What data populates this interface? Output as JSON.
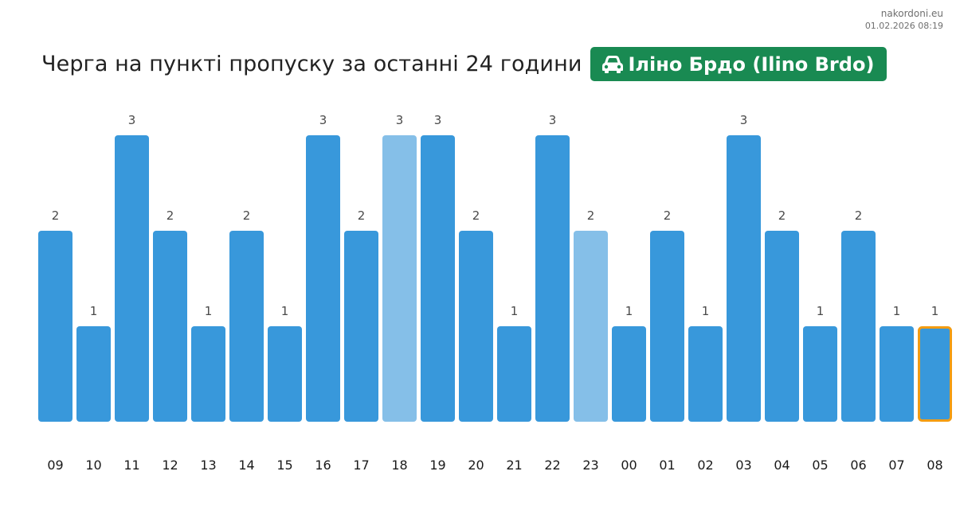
{
  "watermark": {
    "site": "nakordoni.eu",
    "timestamp": "01.02.2026 08:19"
  },
  "header": {
    "title": "Черга на пункті пропуску за останні 24 години",
    "badge_label": "Іліно Брдо (Ilino Brdo)",
    "badge_icon": "car-icon",
    "badge_color": "#198a52"
  },
  "chart_data": {
    "type": "bar",
    "title": "Черга на пункті пропуску за останні 24 години",
    "xlabel": "",
    "ylabel": "",
    "ylim": [
      0,
      3
    ],
    "grid": false,
    "show_value_labels": true,
    "categories": [
      "09",
      "10",
      "11",
      "12",
      "13",
      "14",
      "15",
      "16",
      "17",
      "18",
      "19",
      "20",
      "21",
      "22",
      "23",
      "00",
      "01",
      "02",
      "03",
      "04",
      "05",
      "06",
      "07",
      "08"
    ],
    "values": [
      2,
      1,
      3,
      2,
      1,
      2,
      1,
      3,
      2,
      3,
      3,
      2,
      1,
      3,
      2,
      1,
      2,
      1,
      3,
      2,
      1,
      2,
      1,
      1
    ],
    "highlighted_light": [
      "18",
      "23"
    ],
    "current": "08",
    "colors": {
      "bar": "#3898db",
      "bar_light": "#85bfe8",
      "current_outline": "#f39c12"
    }
  }
}
